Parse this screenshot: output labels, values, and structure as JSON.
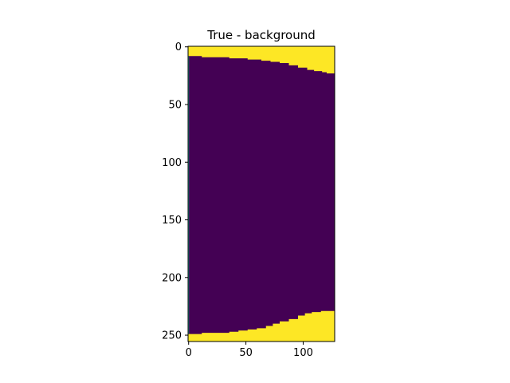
{
  "chart_data": {
    "type": "heatmap",
    "title": "True - background",
    "xlabel": "",
    "ylabel": "",
    "xlim": [
      0,
      127
    ],
    "ylim": [
      255,
      0
    ],
    "y_inverted": true,
    "grid": false,
    "legend": "none",
    "xticks": [
      0,
      50,
      100
    ],
    "yticks": [
      0,
      50,
      100,
      150,
      200,
      250
    ],
    "colors": {
      "foreground": "#fde725",
      "background": "#440154"
    },
    "top_boundary": {
      "x": [
        0,
        12,
        36,
        52,
        64,
        72,
        80,
        88,
        96,
        104,
        110,
        117,
        121,
        127
      ],
      "y": [
        8,
        9,
        10,
        11,
        12,
        13,
        14,
        16,
        18,
        20,
        21,
        22,
        23,
        23
      ]
    },
    "bottom_boundary": {
      "x": [
        0,
        12,
        36,
        44,
        52,
        60,
        68,
        74,
        80,
        88,
        96,
        102,
        108,
        116,
        127
      ],
      "y": [
        249,
        248,
        247,
        246,
        245,
        244,
        242,
        240,
        238,
        236,
        233,
        231,
        230,
        229,
        229
      ]
    }
  }
}
